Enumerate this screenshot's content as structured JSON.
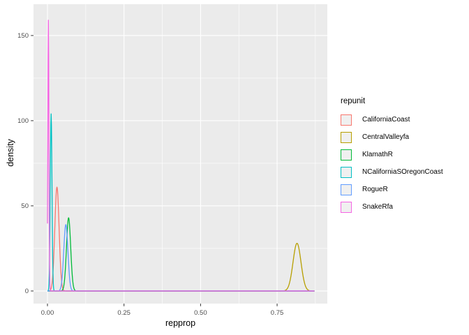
{
  "figure": {
    "background": "#FFFFFF",
    "panel_bg": "#EBEBEB",
    "grid_color": "#FFFFFF",
    "tick_color": "#333333",
    "tick_label_color": "#4D4D4D",
    "axis_title_color": "#000000",
    "legend_key_fill": "#F0F0F0"
  },
  "chart_data": {
    "type": "line",
    "subtype": "kernel-density",
    "title": "",
    "xlabel": "repprop",
    "ylabel": "density",
    "legend_title": "repunit",
    "legend_position": "right",
    "grid": true,
    "x_ticks": [
      0,
      0.25,
      0.5,
      0.75
    ],
    "x_tick_labels": [
      "0.00",
      "0.25",
      "0.50",
      "0.75"
    ],
    "x_minor_ticks": [
      0.125,
      0.375,
      0.625,
      0.875
    ],
    "y_ticks": [
      0,
      50,
      100,
      150
    ],
    "y_tick_labels": [
      "0",
      "50",
      "100",
      "150"
    ],
    "y_minor_ticks": [
      25,
      75,
      125
    ],
    "xlim": [
      -0.0456,
      0.914
    ],
    "ylim": [
      -7.4,
      168.4
    ],
    "x_data_range": [
      0,
      0.872
    ],
    "series": [
      {
        "name": "CaliforniaCoast",
        "color": "#F8766D",
        "peak_x": 0.031,
        "peak_density": 61,
        "sd": 0.007
      },
      {
        "name": "CentralValleyfa",
        "color": "#B79F00",
        "peak_x": 0.815,
        "peak_density": 28,
        "sd": 0.013
      },
      {
        "name": "KlamathR",
        "color": "#00BA38",
        "peak_x": 0.069,
        "peak_density": 43,
        "sd": 0.0068
      },
      {
        "name": "NCaliforniaSOregonCoast",
        "color": "#00BFC4",
        "peak_x": 0.012,
        "peak_density": 104,
        "sd": 0.0028
      },
      {
        "name": "RogueR",
        "color": "#619CFF",
        "peak_x": 0.06,
        "peak_density": 39,
        "sd": 0.0068
      },
      {
        "name": "SnakeRfa",
        "color": "#F564E3",
        "peak_x": 0.003,
        "peak_density": 159,
        "sd": 0.0018
      }
    ]
  }
}
